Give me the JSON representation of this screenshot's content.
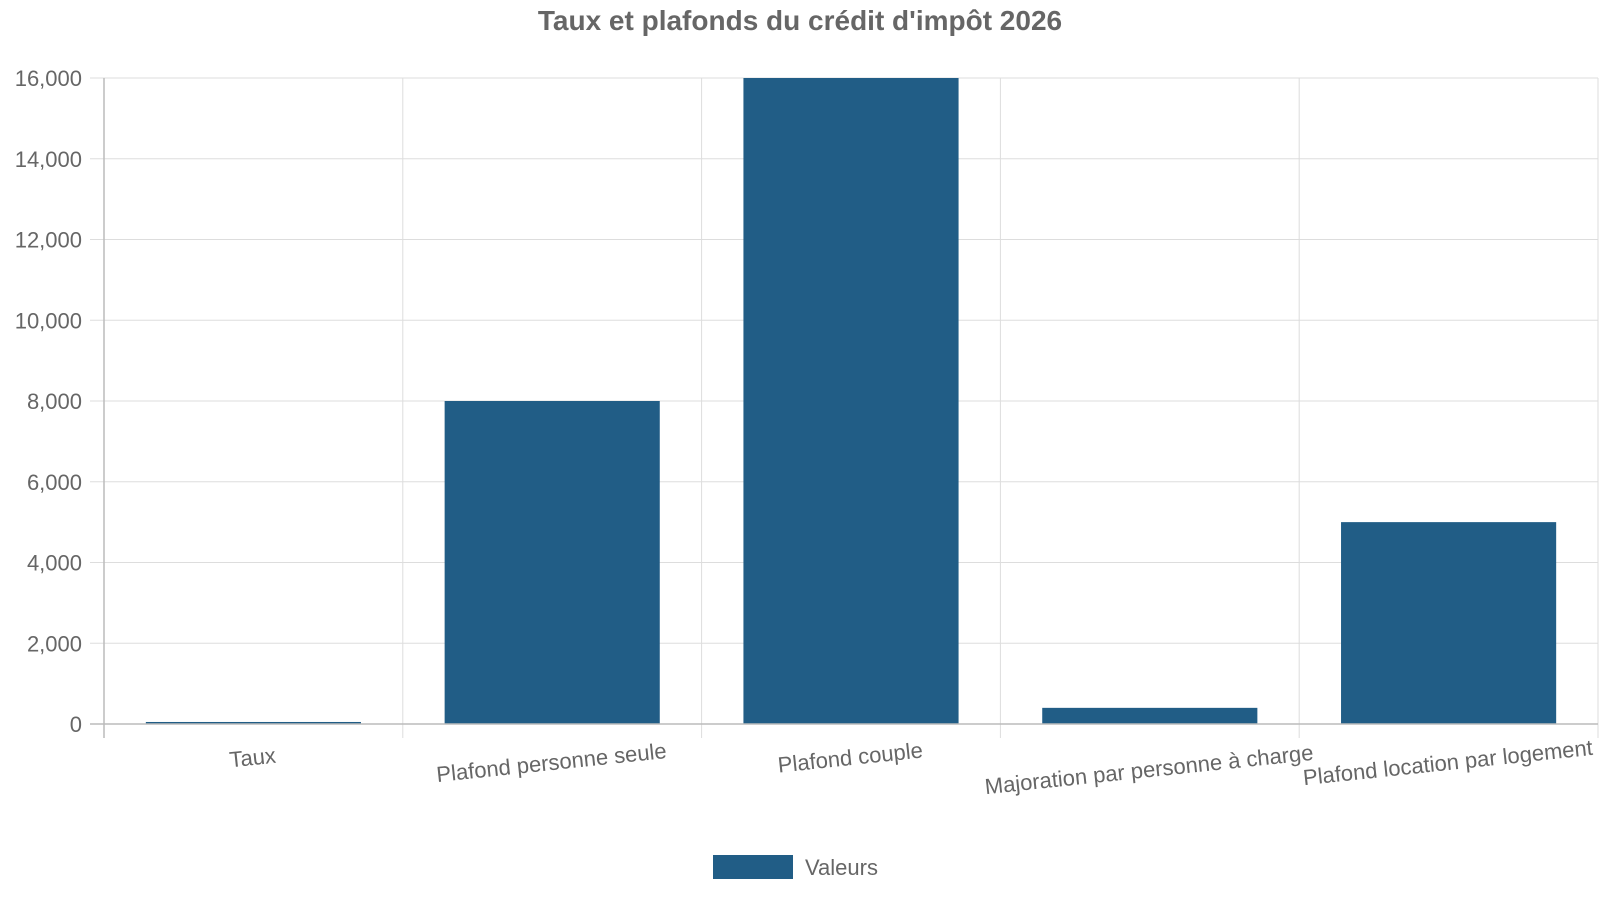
{
  "chart_data": {
    "type": "bar",
    "title": "Taux et plafonds du crédit d'impôt 2026",
    "xlabel": "",
    "ylabel": "",
    "categories": [
      "Taux",
      "Plafond personne seule",
      "Plafond couple",
      "Majoration par personne à charge",
      "Plafond location par logement"
    ],
    "series": [
      {
        "name": "Valeurs",
        "values": [
          50,
          8000,
          16000,
          400,
          5000
        ],
        "color": "#215d86"
      }
    ],
    "ylim": [
      0,
      16000
    ],
    "yticks": [
      "0",
      "2,000",
      "4,000",
      "6,000",
      "8,000",
      "10,000",
      "12,000",
      "14,000",
      "16,000"
    ],
    "ytick_values": [
      0,
      2000,
      4000,
      6000,
      8000,
      10000,
      12000,
      14000,
      16000
    ],
    "grid": true,
    "legend": "bottom-center"
  }
}
